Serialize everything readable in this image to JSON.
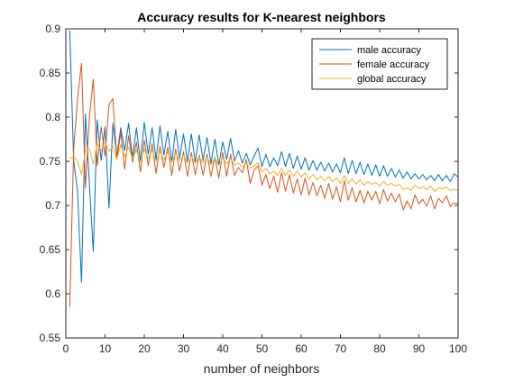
{
  "chart_data": {
    "type": "line",
    "title": "Accuracy results for K-nearest neighbors",
    "xlabel": "number of neighbors",
    "ylabel": "",
    "xlim": [
      0,
      100
    ],
    "ylim": [
      0.55,
      0.9
    ],
    "x_ticks": [
      0,
      10,
      20,
      30,
      40,
      50,
      60,
      70,
      80,
      90,
      100
    ],
    "y_ticks": [
      0.55,
      0.6,
      0.65,
      0.7,
      0.75,
      0.8,
      0.85,
      0.9
    ],
    "x_tick_labels": [
      "0",
      "10",
      "20",
      "30",
      "40",
      "50",
      "60",
      "70",
      "80",
      "90",
      "100"
    ],
    "y_tick_labels": [
      "0.55",
      "0.6",
      "0.65",
      "0.7",
      "0.75",
      "0.8",
      "0.85",
      "0.9"
    ],
    "grid": false,
    "legend_position": "top-right",
    "series": [
      {
        "name": "male accuracy",
        "color": "#0072BD",
        "x": [
          1,
          2,
          3,
          4,
          5,
          6,
          7,
          8,
          9,
          10,
          11,
          12,
          13,
          14,
          15,
          16,
          17,
          18,
          19,
          20,
          21,
          22,
          23,
          24,
          25,
          26,
          27,
          28,
          29,
          30,
          31,
          32,
          33,
          34,
          35,
          36,
          37,
          38,
          39,
          40,
          41,
          42,
          43,
          44,
          45,
          46,
          47,
          48,
          49,
          50,
          51,
          52,
          53,
          54,
          55,
          56,
          57,
          58,
          59,
          60,
          61,
          62,
          63,
          64,
          65,
          66,
          67,
          68,
          69,
          70,
          71,
          72,
          73,
          74,
          75,
          76,
          77,
          78,
          79,
          80,
          81,
          82,
          83,
          84,
          85,
          86,
          87,
          88,
          89,
          90,
          91,
          92,
          93,
          94,
          95,
          96,
          97,
          98,
          99,
          100
        ],
        "values": [
          0.898,
          0.751,
          0.715,
          0.613,
          0.804,
          0.725,
          0.648,
          0.797,
          0.751,
          0.789,
          0.697,
          0.793,
          0.756,
          0.788,
          0.762,
          0.793,
          0.754,
          0.788,
          0.75,
          0.794,
          0.758,
          0.788,
          0.752,
          0.79,
          0.757,
          0.784,
          0.749,
          0.786,
          0.754,
          0.781,
          0.75,
          0.781,
          0.749,
          0.78,
          0.751,
          0.777,
          0.748,
          0.775,
          0.746,
          0.772,
          0.752,
          0.776,
          0.75,
          0.762,
          0.748,
          0.759,
          0.746,
          0.756,
          0.765,
          0.744,
          0.758,
          0.744,
          0.754,
          0.745,
          0.761,
          0.744,
          0.759,
          0.742,
          0.756,
          0.741,
          0.754,
          0.74,
          0.751,
          0.74,
          0.749,
          0.739,
          0.748,
          0.738,
          0.747,
          0.737,
          0.754,
          0.736,
          0.751,
          0.736,
          0.749,
          0.735,
          0.747,
          0.734,
          0.746,
          0.733,
          0.745,
          0.733,
          0.742,
          0.732,
          0.74,
          0.731,
          0.738,
          0.73,
          0.736,
          0.73,
          0.735,
          0.729,
          0.734,
          0.728,
          0.735,
          0.728,
          0.734,
          0.727,
          0.736,
          0.732
        ]
      },
      {
        "name": "female accuracy",
        "color": "#D95319",
        "x": [
          1,
          2,
          3,
          4,
          5,
          6,
          7,
          8,
          9,
          10,
          11,
          12,
          13,
          14,
          15,
          16,
          17,
          18,
          19,
          20,
          21,
          22,
          23,
          24,
          25,
          26,
          27,
          28,
          29,
          30,
          31,
          32,
          33,
          34,
          35,
          36,
          37,
          38,
          39,
          40,
          41,
          42,
          43,
          44,
          45,
          46,
          47,
          48,
          49,
          50,
          51,
          52,
          53,
          54,
          55,
          56,
          57,
          58,
          59,
          60,
          61,
          62,
          63,
          64,
          65,
          66,
          67,
          68,
          69,
          70,
          71,
          72,
          73,
          74,
          75,
          76,
          77,
          78,
          79,
          80,
          81,
          82,
          83,
          84,
          85,
          86,
          87,
          88,
          89,
          90,
          91,
          92,
          93,
          94,
          95,
          96,
          97,
          98,
          99,
          100
        ],
        "values": [
          0.585,
          0.764,
          0.822,
          0.861,
          0.72,
          0.8,
          0.843,
          0.745,
          0.789,
          0.756,
          0.814,
          0.821,
          0.752,
          0.783,
          0.741,
          0.779,
          0.749,
          0.772,
          0.738,
          0.774,
          0.745,
          0.77,
          0.736,
          0.767,
          0.743,
          0.766,
          0.734,
          0.764,
          0.739,
          0.761,
          0.733,
          0.76,
          0.735,
          0.757,
          0.734,
          0.758,
          0.733,
          0.755,
          0.731,
          0.76,
          0.733,
          0.758,
          0.734,
          0.743,
          0.737,
          0.752,
          0.725,
          0.74,
          0.745,
          0.723,
          0.735,
          0.719,
          0.733,
          0.715,
          0.737,
          0.716,
          0.735,
          0.714,
          0.73,
          0.712,
          0.731,
          0.712,
          0.726,
          0.711,
          0.723,
          0.708,
          0.725,
          0.707,
          0.721,
          0.704,
          0.728,
          0.706,
          0.72,
          0.704,
          0.717,
          0.703,
          0.716,
          0.706,
          0.716,
          0.702,
          0.718,
          0.705,
          0.714,
          0.704,
          0.713,
          0.695,
          0.705,
          0.696,
          0.712,
          0.702,
          0.707,
          0.699,
          0.711,
          0.696,
          0.708,
          0.703,
          0.711,
          0.699,
          0.703,
          0.702
        ]
      },
      {
        "name": "global accuracy",
        "color": "#EDB120",
        "x": [
          1,
          2,
          3,
          4,
          5,
          6,
          7,
          8,
          9,
          10,
          11,
          12,
          13,
          14,
          15,
          16,
          17,
          18,
          19,
          20,
          21,
          22,
          23,
          24,
          25,
          26,
          27,
          28,
          29,
          30,
          31,
          32,
          33,
          34,
          35,
          36,
          37,
          38,
          39,
          40,
          41,
          42,
          43,
          44,
          45,
          46,
          47,
          48,
          49,
          50,
          51,
          52,
          53,
          54,
          55,
          56,
          57,
          58,
          59,
          60,
          61,
          62,
          63,
          64,
          65,
          66,
          67,
          68,
          69,
          70,
          71,
          72,
          73,
          74,
          75,
          76,
          77,
          78,
          79,
          80,
          81,
          82,
          83,
          84,
          85,
          86,
          87,
          88,
          89,
          90,
          91,
          92,
          93,
          94,
          95,
          96,
          97,
          98,
          99,
          100
        ],
        "values": [
          0.753,
          0.756,
          0.75,
          0.735,
          0.762,
          0.764,
          0.747,
          0.77,
          0.762,
          0.772,
          0.761,
          0.767,
          0.752,
          0.769,
          0.755,
          0.766,
          0.753,
          0.763,
          0.749,
          0.764,
          0.753,
          0.763,
          0.75,
          0.761,
          0.752,
          0.76,
          0.749,
          0.759,
          0.751,
          0.757,
          0.748,
          0.756,
          0.748,
          0.755,
          0.748,
          0.755,
          0.746,
          0.754,
          0.745,
          0.754,
          0.747,
          0.753,
          0.746,
          0.748,
          0.744,
          0.748,
          0.742,
          0.745,
          0.748,
          0.738,
          0.742,
          0.736,
          0.739,
          0.734,
          0.742,
          0.734,
          0.74,
          0.733,
          0.739,
          0.732,
          0.737,
          0.73,
          0.735,
          0.729,
          0.733,
          0.728,
          0.733,
          0.727,
          0.731,
          0.725,
          0.734,
          0.725,
          0.73,
          0.724,
          0.729,
          0.723,
          0.727,
          0.724,
          0.726,
          0.722,
          0.727,
          0.723,
          0.725,
          0.722,
          0.724,
          0.718,
          0.72,
          0.717,
          0.723,
          0.719,
          0.721,
          0.718,
          0.722,
          0.716,
          0.72,
          0.719,
          0.721,
          0.717,
          0.718,
          0.717
        ]
      }
    ]
  }
}
